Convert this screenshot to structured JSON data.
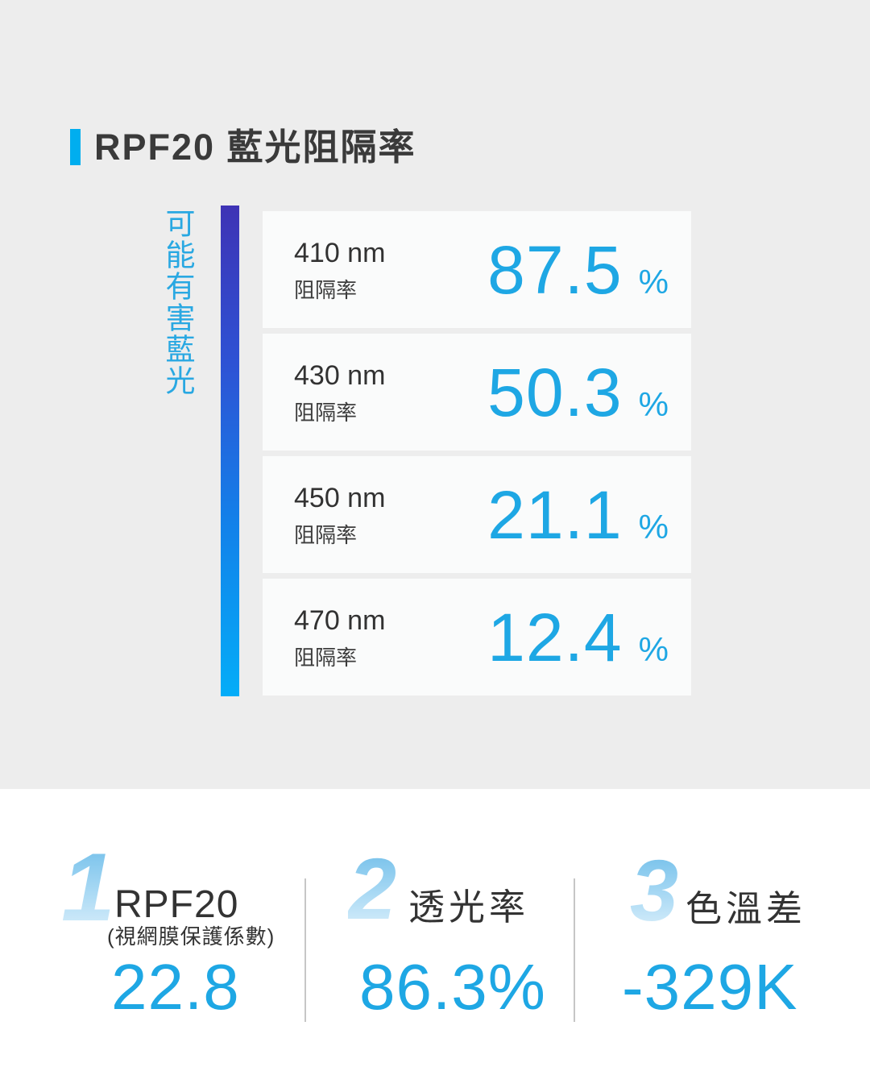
{
  "page": {
    "title": "RPF20 藍光阻隔率",
    "side_label": "可能有害藍光"
  },
  "colors": {
    "background_top": "#ededed",
    "background_bottom": "#ffffff",
    "card_background": "#fafbfb",
    "accent_cyan": "#00aeef",
    "value_cyan": "#1ea7e4",
    "bar_gradient_top": "#3e33b5",
    "bar_gradient_mid": "#1380e9",
    "bar_gradient_bottom": "#04adf8",
    "numeral_gradient_top": "#6ebde9",
    "numeral_gradient_bottom": "#ddf0fb",
    "divider_gray": "#c6c6c6",
    "text_dark": "#333333"
  },
  "cards": [
    {
      "wavelength": "410 nm",
      "metric": "阻隔率",
      "value": "87.5",
      "unit": "%"
    },
    {
      "wavelength": "430 nm",
      "metric": "阻隔率",
      "value": "50.3",
      "unit": "%"
    },
    {
      "wavelength": "450 nm",
      "metric": "阻隔率",
      "value": "21.1",
      "unit": "%"
    },
    {
      "wavelength": "470 nm",
      "metric": "阻隔率",
      "value": "12.4",
      "unit": "%"
    }
  ],
  "stats": [
    {
      "index": "1",
      "name": "RPF20",
      "sub": "(視網膜保護係數)",
      "value": "22.8"
    },
    {
      "index": "2",
      "name": "透光率",
      "value": "86.3%"
    },
    {
      "index": "3",
      "name": "色溫差",
      "value": "-329K"
    }
  ],
  "chart_data": {
    "type": "table",
    "title": "RPF20 藍光阻隔率",
    "categories": [
      "410 nm",
      "430 nm",
      "450 nm",
      "470 nm"
    ],
    "series": [
      {
        "name": "阻隔率 (%)",
        "values": [
          87.5,
          50.3,
          21.1,
          12.4
        ]
      }
    ],
    "annotations": [
      "可能有害藍光"
    ],
    "extra_stats": [
      {
        "label": "RPF20 (視網膜保護係數)",
        "value": 22.8
      },
      {
        "label": "透光率",
        "value": "86.3%"
      },
      {
        "label": "色溫差",
        "value": "-329K"
      }
    ],
    "layout": "vertical card list with wavelength gradient bar (violet #3e33b5 → cyan #04adf8) on left"
  }
}
